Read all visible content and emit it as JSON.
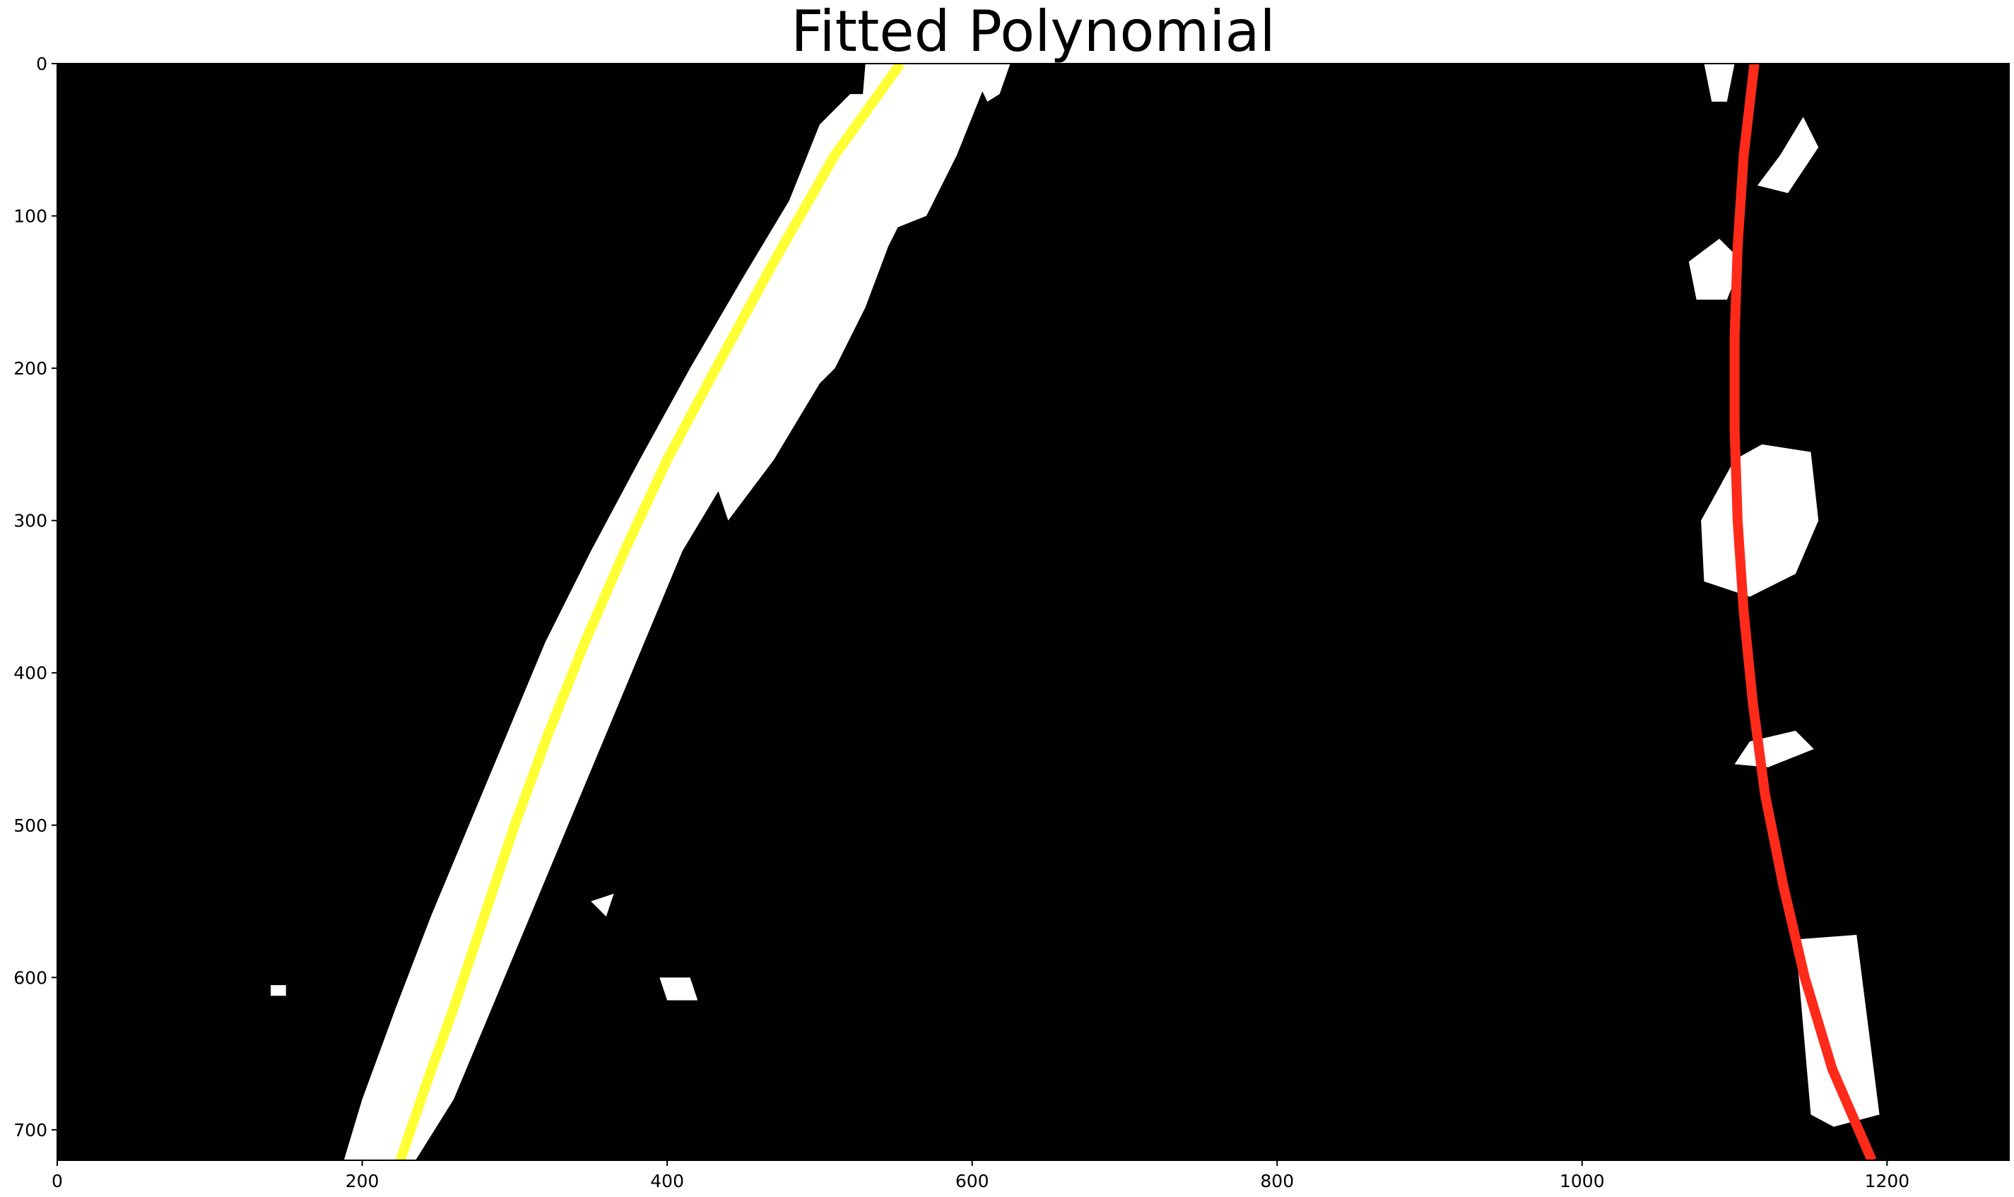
{
  "chart_data": {
    "type": "line",
    "title": "Fitted Polynomial",
    "xlabel": "",
    "ylabel": "",
    "xlim": [
      0,
      1280
    ],
    "ylim": [
      720,
      0
    ],
    "x_ticks": [
      0,
      200,
      400,
      600,
      800,
      1000,
      1200
    ],
    "y_ticks": [
      0,
      100,
      200,
      300,
      400,
      500,
      600,
      700
    ],
    "grid": false,
    "background_image": "binary warped lane-line mask (white pixels on black)",
    "series": [
      {
        "color": "#ffff33",
        "points": [
          {
            "x": 553,
            "y": 0
          },
          {
            "x": 510,
            "y": 60
          },
          {
            "x": 470,
            "y": 130
          },
          {
            "x": 432,
            "y": 200
          },
          {
            "x": 400,
            "y": 260
          },
          {
            "x": 372,
            "y": 320
          },
          {
            "x": 346,
            "y": 380
          },
          {
            "x": 322,
            "y": 440
          },
          {
            "x": 300,
            "y": 500
          },
          {
            "x": 280,
            "y": 560
          },
          {
            "x": 260,
            "y": 620
          },
          {
            "x": 242,
            "y": 670
          },
          {
            "x": 225,
            "y": 720
          }
        ]
      },
      {
        "color": "#ff2a1a",
        "points": [
          {
            "x": 1113,
            "y": 0
          },
          {
            "x": 1106,
            "y": 60
          },
          {
            "x": 1102,
            "y": 120
          },
          {
            "x": 1100,
            "y": 180
          },
          {
            "x": 1100,
            "y": 240
          },
          {
            "x": 1102,
            "y": 300
          },
          {
            "x": 1106,
            "y": 360
          },
          {
            "x": 1112,
            "y": 420
          },
          {
            "x": 1120,
            "y": 480
          },
          {
            "x": 1132,
            "y": 540
          },
          {
            "x": 1146,
            "y": 600
          },
          {
            "x": 1164,
            "y": 660
          },
          {
            "x": 1190,
            "y": 720
          }
        ]
      }
    ],
    "background_blobs": [
      {
        "points": [
          [
            500,
            40
          ],
          [
            520,
            20
          ],
          [
            560,
            20
          ],
          [
            545,
            70
          ],
          [
            510,
            140
          ],
          [
            470,
            210
          ],
          [
            440,
            270
          ],
          [
            410,
            320
          ],
          [
            385,
            380
          ],
          [
            360,
            440
          ],
          [
            335,
            500
          ],
          [
            310,
            560
          ],
          [
            285,
            620
          ],
          [
            260,
            680
          ],
          [
            235,
            720
          ],
          [
            188,
            720
          ],
          [
            200,
            680
          ],
          [
            222,
            620
          ],
          [
            245,
            560
          ],
          [
            270,
            500
          ],
          [
            295,
            440
          ],
          [
            320,
            380
          ],
          [
            350,
            320
          ],
          [
            382,
            260
          ],
          [
            415,
            200
          ],
          [
            450,
            140
          ],
          [
            480,
            90
          ]
        ]
      },
      {
        "points": [
          [
            530,
            0
          ],
          [
            560,
            0
          ],
          [
            605,
            0
          ],
          [
            615,
            0
          ],
          [
            600,
            20
          ],
          [
            580,
            50
          ],
          [
            560,
            90
          ],
          [
            545,
            120
          ],
          [
            530,
            160
          ],
          [
            510,
            200
          ],
          [
            500,
            210
          ],
          [
            470,
            260
          ],
          [
            440,
            300
          ],
          [
            430,
            270
          ],
          [
            460,
            220
          ],
          [
            490,
            170
          ],
          [
            510,
            110
          ],
          [
            525,
            60
          ]
        ]
      },
      {
        "points": [
          [
            560,
            25
          ],
          [
            585,
            10
          ],
          [
            610,
            10
          ],
          [
            590,
            60
          ],
          [
            570,
            100
          ],
          [
            545,
            110
          ],
          [
            555,
            60
          ]
        ]
      },
      {
        "points": [
          [
            598,
            0
          ],
          [
            625,
            0
          ],
          [
            618,
            20
          ],
          [
            610,
            25
          ]
        ]
      },
      {
        "points": [
          [
            1080,
            0
          ],
          [
            1100,
            0
          ],
          [
            1095,
            25
          ],
          [
            1085,
            25
          ]
        ]
      },
      {
        "points": [
          [
            1130,
            60
          ],
          [
            1145,
            35
          ],
          [
            1155,
            55
          ],
          [
            1135,
            85
          ],
          [
            1115,
            80
          ]
        ]
      },
      {
        "points": [
          [
            1070,
            130
          ],
          [
            1090,
            115
          ],
          [
            1105,
            130
          ],
          [
            1095,
            155
          ],
          [
            1075,
            155
          ]
        ]
      },
      {
        "points": [
          [
            1100,
            260
          ],
          [
            1118,
            250
          ],
          [
            1150,
            255
          ],
          [
            1155,
            300
          ],
          [
            1140,
            335
          ],
          [
            1110,
            350
          ],
          [
            1080,
            340
          ],
          [
            1078,
            300
          ]
        ]
      },
      {
        "points": [
          [
            1110,
            445
          ],
          [
            1140,
            438
          ],
          [
            1152,
            450
          ],
          [
            1122,
            462
          ],
          [
            1100,
            460
          ]
        ]
      },
      {
        "points": [
          [
            1140,
            575
          ],
          [
            1180,
            572
          ],
          [
            1195,
            690
          ],
          [
            1165,
            698
          ],
          [
            1150,
            690
          ]
        ]
      },
      {
        "points": [
          [
            395,
            600
          ],
          [
            415,
            600
          ],
          [
            420,
            615
          ],
          [
            400,
            615
          ]
        ]
      },
      {
        "points": [
          [
            350,
            550
          ],
          [
            365,
            545
          ],
          [
            360,
            560
          ]
        ]
      },
      {
        "points": [
          [
            140,
            605
          ],
          [
            150,
            605
          ],
          [
            150,
            612
          ],
          [
            140,
            612
          ]
        ]
      }
    ]
  }
}
